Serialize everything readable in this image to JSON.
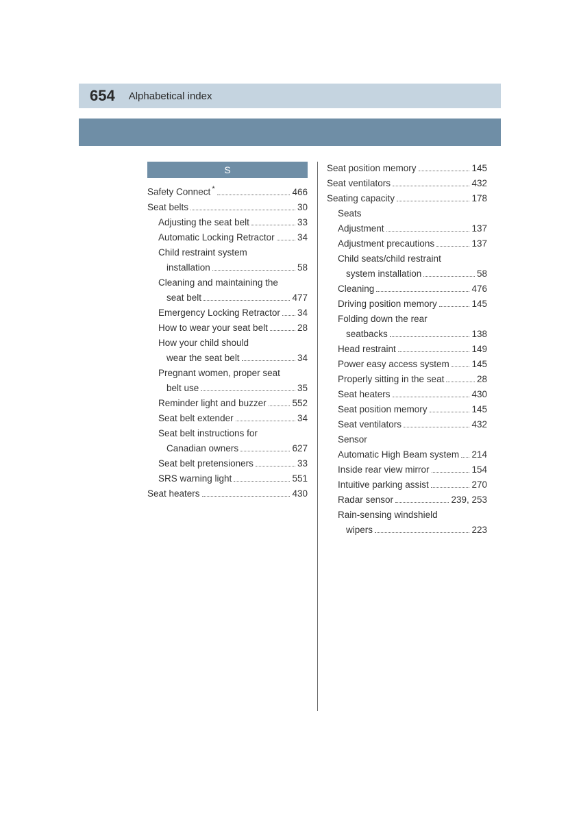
{
  "header": {
    "page_number": "654",
    "title": "Alphabetical index"
  },
  "section_letter": "S",
  "colors": {
    "header_bar": "#c5d4e0",
    "blue_bar": "#6f8ea6",
    "text": "#333333",
    "section_letter_text": "#ffffff"
  },
  "left_column": [
    {
      "type": "entry",
      "label": "Safety Connect",
      "asterisk": true,
      "page": "466",
      "indent": 0
    },
    {
      "type": "entry",
      "label": "Seat belts",
      "page": "30",
      "indent": 0
    },
    {
      "type": "entry",
      "label": "Adjusting the seat belt",
      "page": "33",
      "indent": 1
    },
    {
      "type": "entry",
      "label": "Automatic Locking Retractor",
      "page": "34",
      "indent": 1
    },
    {
      "type": "label",
      "label": "Child restraint system",
      "indent": 1
    },
    {
      "type": "entry",
      "label": "installation",
      "page": "58",
      "indent": 2
    },
    {
      "type": "label",
      "label": "Cleaning and maintaining the",
      "indent": 1
    },
    {
      "type": "entry",
      "label": "seat belt",
      "page": "477",
      "indent": 2
    },
    {
      "type": "entry",
      "label": "Emergency Locking Retractor",
      "page": "34",
      "indent": 1
    },
    {
      "type": "entry",
      "label": "How to wear your seat belt",
      "page": "28",
      "indent": 1
    },
    {
      "type": "label",
      "label": "How your child should",
      "indent": 1
    },
    {
      "type": "entry",
      "label": "wear the seat belt",
      "page": "34",
      "indent": 2
    },
    {
      "type": "label",
      "label": "Pregnant women, proper seat",
      "indent": 1
    },
    {
      "type": "entry",
      "label": "belt use",
      "page": "35",
      "indent": 2
    },
    {
      "type": "entry",
      "label": "Reminder light and buzzer",
      "page": "552",
      "indent": 1
    },
    {
      "type": "entry",
      "label": "Seat belt extender",
      "page": "34",
      "indent": 1
    },
    {
      "type": "label",
      "label": "Seat belt instructions for",
      "indent": 1
    },
    {
      "type": "entry",
      "label": "Canadian owners",
      "page": "627",
      "indent": 2
    },
    {
      "type": "entry",
      "label": "Seat belt pretensioners",
      "page": "33",
      "indent": 1
    },
    {
      "type": "entry",
      "label": "SRS warning light",
      "page": "551",
      "indent": 1
    },
    {
      "type": "entry",
      "label": "Seat heaters",
      "page": "430",
      "indent": 0
    }
  ],
  "right_column": [
    {
      "type": "entry",
      "label": "Seat position memory",
      "page": "145",
      "indent": 0
    },
    {
      "type": "entry",
      "label": "Seat ventilators",
      "page": "432",
      "indent": 0
    },
    {
      "type": "entry",
      "label": "Seating capacity",
      "page": "178",
      "indent": 0
    },
    {
      "type": "label",
      "label": "Seats",
      "indent": 0
    },
    {
      "type": "entry",
      "label": "Adjustment",
      "page": "137",
      "indent": 1
    },
    {
      "type": "entry",
      "label": "Adjustment precautions",
      "page": "137",
      "indent": 1
    },
    {
      "type": "label",
      "label": "Child seats/child restraint",
      "indent": 1
    },
    {
      "type": "entry",
      "label": "system installation",
      "page": "58",
      "indent": 2
    },
    {
      "type": "entry",
      "label": "Cleaning",
      "page": "476",
      "indent": 1
    },
    {
      "type": "entry",
      "label": "Driving position memory",
      "page": "145",
      "indent": 1
    },
    {
      "type": "label",
      "label": "Folding down the rear",
      "indent": 1
    },
    {
      "type": "entry",
      "label": "seatbacks",
      "page": "138",
      "indent": 2
    },
    {
      "type": "entry",
      "label": "Head restraint",
      "page": "149",
      "indent": 1
    },
    {
      "type": "entry",
      "label": "Power easy access system",
      "page": "145",
      "indent": 1
    },
    {
      "type": "entry",
      "label": "Properly sitting in the seat",
      "page": "28",
      "indent": 1
    },
    {
      "type": "entry",
      "label": "Seat heaters",
      "page": "430",
      "indent": 1
    },
    {
      "type": "entry",
      "label": "Seat position memory",
      "page": "145",
      "indent": 1
    },
    {
      "type": "entry",
      "label": "Seat ventilators",
      "page": "432",
      "indent": 1
    },
    {
      "type": "label",
      "label": "Sensor",
      "indent": 0
    },
    {
      "type": "entry",
      "label": "Automatic High Beam system",
      "page": "214",
      "indent": 1
    },
    {
      "type": "entry",
      "label": "Inside rear view mirror",
      "page": "154",
      "indent": 1
    },
    {
      "type": "entry",
      "label": "Intuitive parking assist",
      "page": "270",
      "indent": 1
    },
    {
      "type": "entry",
      "label": "Radar sensor",
      "page": "239, 253",
      "indent": 1
    },
    {
      "type": "label",
      "label": "Rain-sensing windshield",
      "indent": 1
    },
    {
      "type": "entry",
      "label": "wipers",
      "page": "223",
      "indent": 2
    }
  ]
}
